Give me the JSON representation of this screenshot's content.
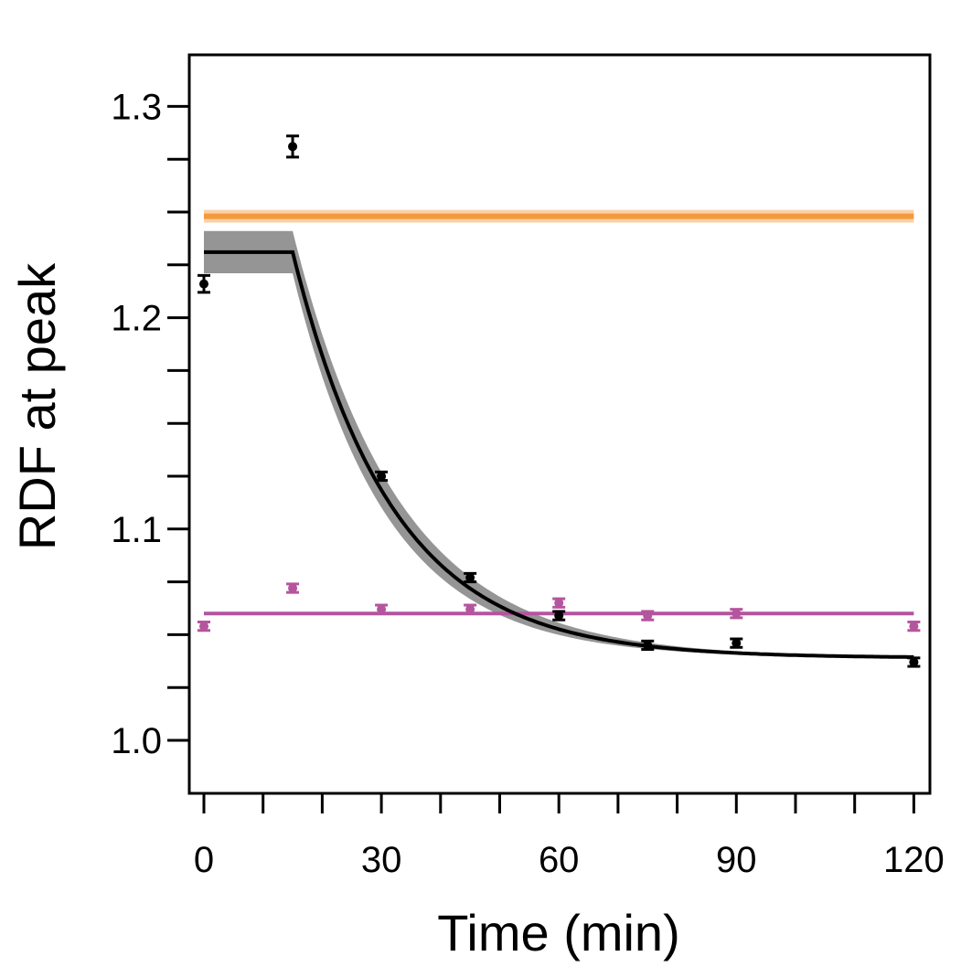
{
  "chart_data": {
    "type": "scatter",
    "title": "",
    "xlabel": "Time (min)",
    "ylabel": "RDF at peak",
    "xlim": [
      -2.5,
      122.5
    ],
    "ylim": [
      0.975,
      1.325
    ],
    "x_ticks_major": [
      0,
      30,
      60,
      90,
      120
    ],
    "x_ticks_minor": [
      10,
      20,
      40,
      50,
      70,
      80,
      100,
      110
    ],
    "y_ticks_major": [
      1.0,
      1.1,
      1.2,
      1.3
    ],
    "y_ticks_minor": [
      1.025,
      1.05,
      1.075,
      1.125,
      1.15,
      1.175,
      1.225,
      1.25,
      1.275
    ],
    "x_tick_labels": [
      "0",
      "30",
      "60",
      "90",
      "120"
    ],
    "y_tick_labels": [
      "1.0",
      "1.1",
      "1.2",
      "1.3"
    ],
    "grid": false,
    "legend": "none",
    "colors": {
      "black": "#000000",
      "orange": "#f39a3c",
      "magenta": "#b4559e",
      "band": "#8a8a8a"
    },
    "series": [
      {
        "style": "points-errorbars",
        "color": "#000000",
        "x": [
          0,
          15,
          30,
          45,
          60,
          75,
          90,
          120
        ],
        "y": [
          1.216,
          1.281,
          1.125,
          1.077,
          1.059,
          1.045,
          1.046,
          1.037
        ],
        "err": [
          0.004,
          0.005,
          0.002,
          0.002,
          0.002,
          0.002,
          0.002,
          0.002
        ]
      },
      {
        "style": "points-errorbars",
        "color": "#b4559e",
        "x": [
          0,
          15,
          30,
          45,
          60,
          75,
          90,
          120
        ],
        "y": [
          1.054,
          1.072,
          1.062,
          1.062,
          1.065,
          1.059,
          1.06,
          1.054
        ],
        "err": [
          0.002,
          0.002,
          0.002,
          0.002,
          0.002,
          0.002,
          0.002,
          0.002
        ]
      },
      {
        "style": "line",
        "color": "#f39a3c",
        "x": [
          0,
          120
        ],
        "y": [
          1.248,
          1.248
        ],
        "band": 0.003
      },
      {
        "style": "line",
        "color": "#b4559e",
        "x": [
          0,
          120
        ],
        "y": [
          1.06,
          1.06
        ]
      },
      {
        "style": "fit-curve",
        "color": "#000000",
        "model": "plateau then exponential decay",
        "plateau": 1.231,
        "t0": 15,
        "asymptote": 1.039,
        "tau": 17,
        "band_upper_plateau": 1.241,
        "band_lower_plateau": 1.221,
        "x_end": 120
      }
    ]
  }
}
